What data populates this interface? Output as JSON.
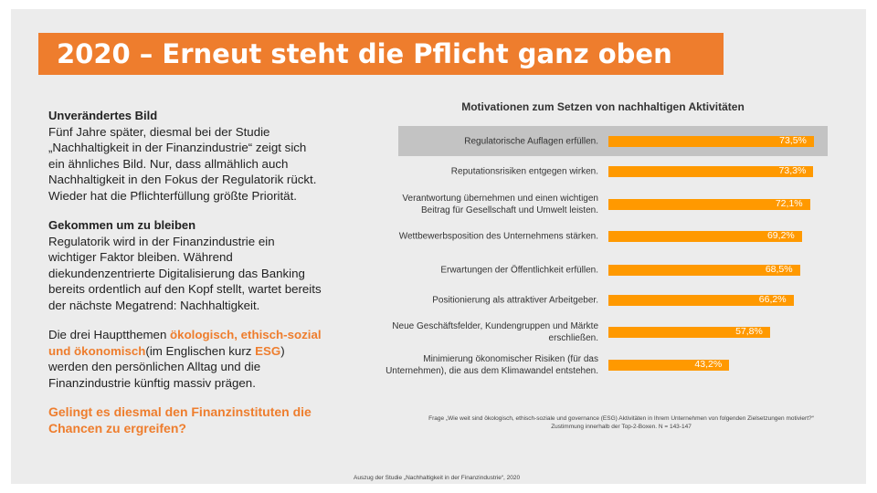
{
  "title": "2020 – Erneut steht die Pflicht ganz oben",
  "left": {
    "h1": "Unverändertes Bild",
    "p1": "Fünf Jahre später, diesmal bei der Studie „Nachhaltigkeit in der Finanzindustrie“ zeigt sich ein ähnliches Bild. Nur, dass allmählich auch Nachhaltigkeit in den Fokus der Regulatorik rückt. Wieder hat die Pflichterfüllung größte Priorität.",
    "h2": "Gekommen um zu bleiben",
    "p2": "Regulatorik wird in der Finanzindustrie ein wichtiger Faktor bleiben. Während diekundenzentrierte Digitalisierung das Banking bereits ordentlich auf den Kopf stellt, wartet bereits der nächste Megatrend: Nachhaltigkeit.",
    "p3a": "Die drei Hauptthemen ",
    "p3b": "ökologisch, ethisch-sozial und ökonomisch",
    "p3c": "(im Englischen kurz ",
    "p3d": "ESG",
    "p3e": ") werden den persönlichen Alltag und die Finanzindustrie künftig massiv prägen.",
    "question": "Gelingt es diesmal den Finanzinstituten die Chancen zu ergreifen?"
  },
  "chart_data": {
    "type": "bar",
    "orientation": "horizontal",
    "title": "Motivationen zum Setzen von nachhaltigen Aktivitäten",
    "categories": [
      "Regulatorische Auflagen erfüllen.",
      "Reputationsrisiken entgegen wirken.",
      "Verantwortung übernehmen und einen wichtigen Beitrag für Gesellschaft und Umwelt leisten.",
      "Wettbewerbsposition des Unternehmens stärken.",
      "Erwartungen der Öffentlichkeit erfüllen.",
      "Positionierung als attraktiver Arbeitgeber.",
      "Neue Geschäftsfelder, Kundengruppen und Märkte erschließen.",
      "Minimierung ökonomischer Risiken (für das Unternehmen), die aus dem Klimawandel entstehen."
    ],
    "values": [
      73.5,
      73.3,
      72.1,
      69.2,
      68.5,
      66.2,
      57.8,
      43.2
    ],
    "labels": [
      "73,5%",
      "73,3%",
      "72,1%",
      "69,2%",
      "68,5%",
      "66,2%",
      "57,8%",
      "43,2%"
    ],
    "highlighted": 0,
    "bar_color": "#ff9900",
    "highlight_color": "#c3c3c3",
    "note1": "Frage „Wie weit sind ökologisch, ethisch-soziale und governance (ESG) Aktivitäten in Ihrem Unternehmen von folgenden Zielsetzungen motiviert?“",
    "note2": "Zustimmung innerhalb der Top-2-Boxen. N = 143-147"
  },
  "footer": "Auszug der Studie „Nachhaltigkeit in der Finanzindustrie“, 2020",
  "colors": {
    "accent": "#ee7d2d"
  }
}
